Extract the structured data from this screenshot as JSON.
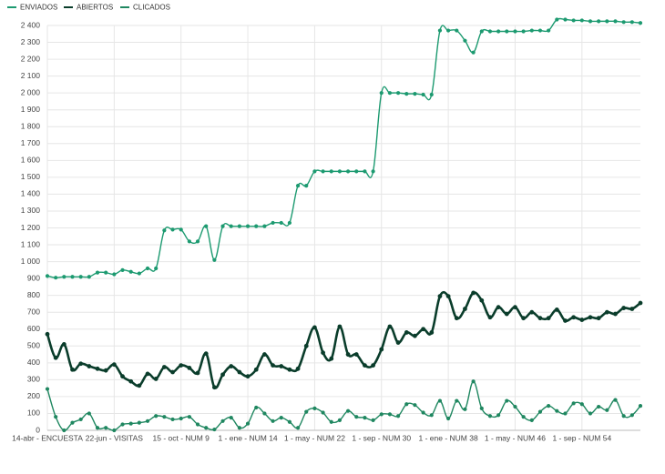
{
  "chart_data": {
    "type": "line",
    "categories": [
      "14-abr - ENCUESTA",
      null,
      null,
      null,
      null,
      null,
      null,
      null,
      "22-jun - VISITAS",
      null,
      null,
      null,
      null,
      null,
      null,
      null,
      "15 - oct - NUM 9",
      null,
      null,
      null,
      null,
      null,
      null,
      null,
      "1 - ene - NUM 14",
      null,
      null,
      null,
      null,
      null,
      null,
      null,
      "1 - may - NUM 22",
      null,
      null,
      null,
      null,
      null,
      null,
      null,
      "1 - sep - NUM 30",
      null,
      null,
      null,
      null,
      null,
      null,
      null,
      "1 - ene - NUM 38",
      null,
      null,
      null,
      null,
      null,
      null,
      null,
      "1 - may - NUM 46",
      null,
      null,
      null,
      null,
      null,
      null,
      null,
      "1 - sep - NUM 54",
      null,
      null,
      null,
      null,
      null,
      null,
      null
    ],
    "series": [
      {
        "name": "ENVIADOS",
        "color": "#1c9a70",
        "values": [
          915,
          905,
          910,
          910,
          910,
          910,
          935,
          935,
          925,
          950,
          940,
          930,
          960,
          960,
          1185,
          1190,
          1190,
          1120,
          1120,
          1210,
          1010,
          1210,
          1210,
          1210,
          1210,
          1210,
          1210,
          1230,
          1230,
          1230,
          1450,
          1450,
          1535,
          1535,
          1535,
          1535,
          1535,
          1535,
          1535,
          1535,
          2000,
          2000,
          2000,
          1995,
          1995,
          1990,
          1990,
          2370,
          2370,
          2370,
          2310,
          2240,
          2365,
          2365,
          2365,
          2365,
          2365,
          2365,
          2370,
          2370,
          2370,
          2435,
          2435,
          2430,
          2430,
          2425,
          2425,
          2425,
          2425,
          2420,
          2420,
          2415
        ]
      },
      {
        "name": "ABIERTOS",
        "color": "#0a3d2b",
        "values": [
          570,
          430,
          510,
          360,
          395,
          380,
          365,
          355,
          390,
          320,
          290,
          265,
          335,
          305,
          375,
          345,
          385,
          370,
          340,
          455,
          255,
          330,
          380,
          345,
          320,
          360,
          450,
          385,
          380,
          360,
          365,
          500,
          610,
          460,
          425,
          615,
          450,
          450,
          385,
          385,
          480,
          615,
          520,
          580,
          560,
          600,
          580,
          795,
          795,
          665,
          720,
          815,
          770,
          670,
          730,
          690,
          730,
          665,
          700,
          665,
          665,
          715,
          650,
          670,
          655,
          670,
          665,
          700,
          690,
          725,
          720,
          755
        ]
      },
      {
        "name": "CLICADOS",
        "color": "#1f8760",
        "values": [
          245,
          80,
          0,
          45,
          65,
          100,
          15,
          15,
          0,
          35,
          40,
          45,
          55,
          85,
          80,
          65,
          70,
          80,
          35,
          15,
          5,
          55,
          75,
          15,
          40,
          135,
          100,
          55,
          75,
          50,
          15,
          110,
          130,
          105,
          50,
          60,
          115,
          80,
          75,
          60,
          95,
          95,
          85,
          155,
          150,
          105,
          90,
          175,
          70,
          175,
          125,
          290,
          130,
          85,
          90,
          175,
          140,
          80,
          60,
          110,
          145,
          115,
          100,
          160,
          155,
          100,
          140,
          120,
          180,
          85,
          90,
          145
        ]
      }
    ],
    "ylim": [
      0,
      2400
    ],
    "yticks": [
      0,
      100,
      200,
      300,
      400,
      500,
      600,
      700,
      800,
      900,
      {
        "value": 1000,
        "label": "1 000"
      },
      {
        "value": 1100,
        "label": "1 100"
      },
      {
        "value": 1200,
        "label": "1 200"
      },
      {
        "value": 1300,
        "label": "1 300"
      },
      {
        "value": 1400,
        "label": "1 400"
      },
      {
        "value": 1500,
        "label": "1 500"
      },
      {
        "value": 1600,
        "label": "1 600"
      },
      {
        "value": 1700,
        "label": "1 700"
      },
      {
        "value": 1800,
        "label": "1 800"
      },
      {
        "value": 1900,
        "label": "1 900"
      },
      {
        "value": 2000,
        "label": "2 000"
      },
      {
        "value": 2100,
        "label": "2 100"
      },
      {
        "value": 2200,
        "label": "2 200"
      },
      {
        "value": 2300,
        "label": "2 300"
      },
      {
        "value": 2400,
        "label": "2 400"
      }
    ],
    "grid": true,
    "legend": "top-left"
  }
}
